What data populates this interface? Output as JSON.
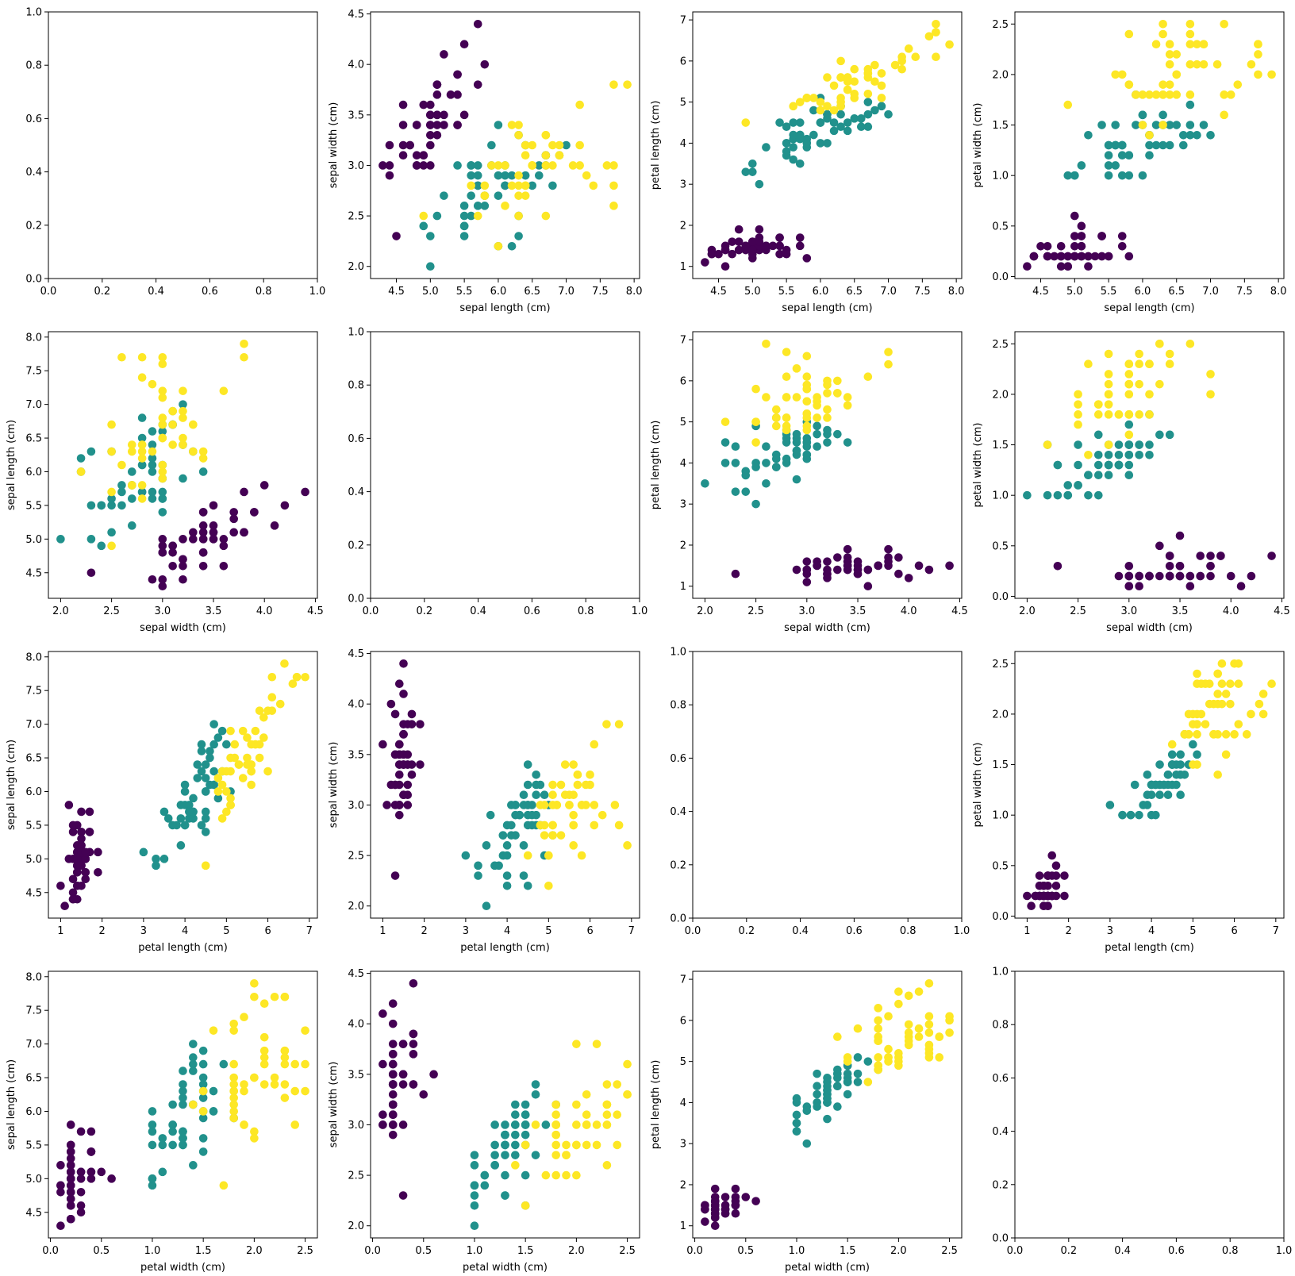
{
  "figure": {
    "species_colors": [
      "#440154",
      "#21918c",
      "#fde725"
    ],
    "features": [
      "sepal length (cm)",
      "sepal width (cm)",
      "petal length (cm)",
      "petal width (cm)"
    ]
  },
  "iris": {
    "sl": [
      5.1,
      4.9,
      4.7,
      4.6,
      5.0,
      5.4,
      4.6,
      5.0,
      4.4,
      4.9,
      5.4,
      4.8,
      4.8,
      4.3,
      5.8,
      5.7,
      5.4,
      5.1,
      5.7,
      5.1,
      5.4,
      5.1,
      4.6,
      5.1,
      4.8,
      5.0,
      5.0,
      5.2,
      5.2,
      4.7,
      4.8,
      5.4,
      5.2,
      5.5,
      4.9,
      5.0,
      5.5,
      4.9,
      4.4,
      5.1,
      5.0,
      4.5,
      4.4,
      5.0,
      5.1,
      4.8,
      5.1,
      4.6,
      5.3,
      5.0,
      7.0,
      6.4,
      6.9,
      5.5,
      6.5,
      5.7,
      6.3,
      4.9,
      6.6,
      5.2,
      5.0,
      5.9,
      6.0,
      6.1,
      5.6,
      6.7,
      5.6,
      5.8,
      6.2,
      5.6,
      5.9,
      6.1,
      6.3,
      6.1,
      6.4,
      6.6,
      6.8,
      6.7,
      6.0,
      5.7,
      5.5,
      5.5,
      5.8,
      6.0,
      5.4,
      6.0,
      6.7,
      6.3,
      5.6,
      5.5,
      5.5,
      6.1,
      5.8,
      5.0,
      5.6,
      5.7,
      5.7,
      6.2,
      5.1,
      5.7,
      6.3,
      5.8,
      7.1,
      6.3,
      6.5,
      7.6,
      4.9,
      7.3,
      6.7,
      7.2,
      6.5,
      6.4,
      6.8,
      5.7,
      5.8,
      6.4,
      6.5,
      7.7,
      7.7,
      6.0,
      6.9,
      5.6,
      7.7,
      6.3,
      6.7,
      7.2,
      6.2,
      6.1,
      6.4,
      7.2,
      7.4,
      7.9,
      6.4,
      6.3,
      6.1,
      7.7,
      6.3,
      6.4,
      6.0,
      6.9,
      6.7,
      6.9,
      5.8,
      6.8,
      6.7,
      6.7,
      6.3,
      6.5,
      6.2,
      5.9
    ],
    "sw": [
      3.5,
      3.0,
      3.2,
      3.1,
      3.6,
      3.9,
      3.4,
      3.4,
      2.9,
      3.1,
      3.7,
      3.4,
      3.0,
      3.0,
      4.0,
      4.4,
      3.9,
      3.5,
      3.8,
      3.8,
      3.4,
      3.7,
      3.6,
      3.3,
      3.4,
      3.0,
      3.4,
      3.5,
      3.4,
      3.2,
      3.1,
      3.4,
      4.1,
      4.2,
      3.1,
      3.2,
      3.5,
      3.6,
      3.0,
      3.4,
      3.5,
      2.3,
      3.2,
      3.5,
      3.8,
      3.0,
      3.8,
      3.2,
      3.7,
      3.3,
      3.2,
      3.2,
      3.1,
      2.3,
      2.8,
      2.8,
      3.3,
      2.4,
      2.9,
      2.7,
      2.0,
      3.0,
      2.2,
      2.9,
      2.9,
      3.1,
      3.0,
      2.7,
      2.2,
      2.5,
      3.2,
      2.8,
      2.5,
      2.8,
      2.9,
      3.0,
      2.8,
      3.0,
      2.9,
      2.6,
      2.4,
      2.4,
      2.7,
      2.7,
      3.0,
      3.4,
      3.1,
      2.3,
      3.0,
      2.5,
      2.6,
      3.0,
      2.6,
      2.3,
      2.7,
      3.0,
      2.9,
      2.9,
      2.5,
      2.8,
      3.3,
      2.7,
      3.0,
      2.9,
      3.0,
      3.0,
      2.5,
      2.9,
      2.5,
      3.6,
      3.2,
      2.7,
      3.0,
      2.5,
      2.8,
      3.2,
      3.0,
      3.8,
      2.6,
      2.2,
      3.2,
      2.8,
      2.8,
      2.7,
      3.3,
      3.2,
      2.8,
      3.0,
      2.8,
      3.0,
      2.8,
      3.8,
      2.8,
      2.8,
      2.6,
      3.0,
      3.4,
      3.1,
      3.0,
      3.1,
      3.1,
      3.1,
      2.7,
      3.2,
      3.3,
      3.0,
      2.5,
      3.0,
      3.4,
      3.0
    ],
    "pl": [
      1.4,
      1.4,
      1.3,
      1.5,
      1.4,
      1.7,
      1.4,
      1.5,
      1.4,
      1.5,
      1.5,
      1.6,
      1.4,
      1.1,
      1.2,
      1.5,
      1.3,
      1.4,
      1.7,
      1.5,
      1.7,
      1.5,
      1.0,
      1.7,
      1.9,
      1.6,
      1.6,
      1.5,
      1.4,
      1.6,
      1.6,
      1.5,
      1.5,
      1.4,
      1.5,
      1.2,
      1.3,
      1.4,
      1.3,
      1.5,
      1.3,
      1.3,
      1.3,
      1.6,
      1.9,
      1.4,
      1.6,
      1.4,
      1.5,
      1.4,
      4.7,
      4.5,
      4.9,
      4.0,
      4.6,
      4.5,
      4.7,
      3.3,
      4.6,
      3.9,
      3.5,
      4.2,
      4.0,
      4.7,
      3.6,
      4.4,
      4.5,
      4.1,
      4.5,
      3.9,
      4.8,
      4.0,
      4.9,
      4.7,
      4.3,
      4.4,
      4.8,
      5.0,
      4.5,
      3.5,
      3.8,
      3.7,
      3.9,
      5.1,
      4.5,
      4.5,
      4.7,
      4.4,
      4.1,
      4.0,
      4.4,
      4.6,
      4.0,
      3.3,
      4.2,
      4.2,
      4.2,
      4.3,
      3.0,
      4.1,
      6.0,
      5.1,
      5.9,
      5.6,
      5.8,
      6.6,
      4.5,
      6.3,
      5.8,
      6.1,
      5.1,
      5.3,
      5.5,
      5.0,
      5.1,
      5.3,
      5.5,
      6.7,
      6.9,
      5.0,
      5.7,
      4.9,
      6.7,
      4.9,
      5.7,
      6.0,
      4.8,
      4.9,
      5.6,
      5.8,
      6.1,
      6.4,
      5.6,
      5.1,
      5.6,
      6.1,
      5.6,
      5.5,
      4.8,
      5.4,
      5.6,
      5.1,
      5.1,
      5.9,
      5.7,
      5.2,
      5.0,
      5.2,
      5.4,
      5.1
    ],
    "pw": [
      0.2,
      0.2,
      0.2,
      0.2,
      0.2,
      0.4,
      0.3,
      0.2,
      0.2,
      0.1,
      0.2,
      0.2,
      0.1,
      0.1,
      0.2,
      0.4,
      0.4,
      0.3,
      0.3,
      0.3,
      0.2,
      0.4,
      0.2,
      0.5,
      0.2,
      0.2,
      0.4,
      0.2,
      0.2,
      0.2,
      0.2,
      0.4,
      0.1,
      0.2,
      0.2,
      0.2,
      0.2,
      0.1,
      0.2,
      0.2,
      0.3,
      0.3,
      0.2,
      0.6,
      0.4,
      0.3,
      0.2,
      0.2,
      0.2,
      0.2,
      1.4,
      1.5,
      1.5,
      1.3,
      1.5,
      1.3,
      1.6,
      1.0,
      1.3,
      1.4,
      1.0,
      1.5,
      1.0,
      1.4,
      1.3,
      1.4,
      1.5,
      1.0,
      1.5,
      1.1,
      1.8,
      1.3,
      1.5,
      1.2,
      1.3,
      1.4,
      1.4,
      1.7,
      1.5,
      1.0,
      1.1,
      1.0,
      1.2,
      1.6,
      1.5,
      1.6,
      1.5,
      1.3,
      1.3,
      1.3,
      1.2,
      1.4,
      1.2,
      1.0,
      1.3,
      1.2,
      1.3,
      1.3,
      1.1,
      1.3,
      2.5,
      1.9,
      2.1,
      1.8,
      2.2,
      2.1,
      1.7,
      1.8,
      1.8,
      2.5,
      2.0,
      1.9,
      2.1,
      2.0,
      2.4,
      2.3,
      1.8,
      2.2,
      2.3,
      1.5,
      2.3,
      2.0,
      2.0,
      1.8,
      2.1,
      1.8,
      1.8,
      1.8,
      2.1,
      1.6,
      1.9,
      2.0,
      2.2,
      1.5,
      1.4,
      2.3,
      2.4,
      1.8,
      1.8,
      2.1,
      2.4,
      2.3,
      1.9,
      2.3,
      2.5,
      2.3,
      1.9,
      2.0,
      2.3,
      1.8
    ],
    "class_counts": [
      50,
      50,
      50
    ]
  },
  "chart_data": [
    {
      "type": "scatter",
      "row": 0,
      "col": 0,
      "empty": true,
      "xlabel": "",
      "ylabel": "",
      "xlim": [
        0,
        1
      ],
      "ylim": [
        0,
        1
      ],
      "xticks": [
        0.0,
        0.2,
        0.4,
        0.6,
        0.8,
        1.0
      ],
      "yticks": [
        0.0,
        0.2,
        0.4,
        0.6,
        0.8,
        1.0
      ],
      "tick_decimals": 1
    },
    {
      "type": "scatter",
      "row": 0,
      "col": 1,
      "x": "sl",
      "y": "sw",
      "xlabel": "sepal length (cm)",
      "ylabel": "sepal width (cm)",
      "xlim": [
        4.12,
        8.08
      ],
      "ylim": [
        1.88,
        4.52
      ],
      "xticks": [
        4.5,
        5.0,
        5.5,
        6.0,
        6.5,
        7.0,
        7.5,
        8.0
      ],
      "yticks": [
        2.0,
        2.5,
        3.0,
        3.5,
        4.0,
        4.5
      ],
      "tick_decimals": 1
    },
    {
      "type": "scatter",
      "row": 0,
      "col": 2,
      "x": "sl",
      "y": "pl",
      "xlabel": "sepal length (cm)",
      "ylabel": "petal length (cm)",
      "xlim": [
        4.12,
        8.08
      ],
      "ylim": [
        0.705,
        7.195
      ],
      "xticks": [
        4.5,
        5.0,
        5.5,
        6.0,
        6.5,
        7.0,
        7.5,
        8.0
      ],
      "yticks": [
        1,
        2,
        3,
        4,
        5,
        6,
        7
      ],
      "tick_decimals": 0,
      "xtick_decimals": 1
    },
    {
      "type": "scatter",
      "row": 0,
      "col": 3,
      "x": "sl",
      "y": "pw",
      "xlabel": "sepal length (cm)",
      "ylabel": "petal width (cm)",
      "xlim": [
        4.12,
        8.08
      ],
      "ylim": [
        -0.02,
        2.62
      ],
      "xticks": [
        4.5,
        5.0,
        5.5,
        6.0,
        6.5,
        7.0,
        7.5,
        8.0
      ],
      "yticks": [
        0.0,
        0.5,
        1.0,
        1.5,
        2.0,
        2.5
      ],
      "tick_decimals": 1
    },
    {
      "type": "scatter",
      "row": 1,
      "col": 0,
      "x": "sw",
      "y": "sl",
      "xlabel": "sepal width (cm)",
      "ylabel": "sepal length (cm)",
      "xlim": [
        1.88,
        4.52
      ],
      "ylim": [
        4.12,
        8.08
      ],
      "xticks": [
        2.0,
        2.5,
        3.0,
        3.5,
        4.0,
        4.5
      ],
      "yticks": [
        4.5,
        5.0,
        5.5,
        6.0,
        6.5,
        7.0,
        7.5,
        8.0
      ],
      "tick_decimals": 1
    },
    {
      "type": "scatter",
      "row": 1,
      "col": 1,
      "empty": true,
      "xlabel": "",
      "ylabel": "",
      "xlim": [
        0,
        1
      ],
      "ylim": [
        0,
        1
      ],
      "xticks": [
        0.0,
        0.2,
        0.4,
        0.6,
        0.8,
        1.0
      ],
      "yticks": [
        0.0,
        0.2,
        0.4,
        0.6,
        0.8,
        1.0
      ],
      "tick_decimals": 1
    },
    {
      "type": "scatter",
      "row": 1,
      "col": 2,
      "x": "sw",
      "y": "pl",
      "xlabel": "sepal width (cm)",
      "ylabel": "petal length (cm)",
      "xlim": [
        1.88,
        4.52
      ],
      "ylim": [
        0.705,
        7.195
      ],
      "xticks": [
        2.0,
        2.5,
        3.0,
        3.5,
        4.0,
        4.5
      ],
      "yticks": [
        1,
        2,
        3,
        4,
        5,
        6,
        7
      ],
      "tick_decimals": 0,
      "xtick_decimals": 1
    },
    {
      "type": "scatter",
      "row": 1,
      "col": 3,
      "x": "sw",
      "y": "pw",
      "xlabel": "sepal width (cm)",
      "ylabel": "petal width (cm)",
      "xlim": [
        1.88,
        4.52
      ],
      "ylim": [
        -0.02,
        2.62
      ],
      "xticks": [
        2.0,
        2.5,
        3.0,
        3.5,
        4.0,
        4.5
      ],
      "yticks": [
        0.0,
        0.5,
        1.0,
        1.5,
        2.0,
        2.5
      ],
      "tick_decimals": 1
    },
    {
      "type": "scatter",
      "row": 2,
      "col": 0,
      "x": "pl",
      "y": "sl",
      "xlabel": "petal length (cm)",
      "ylabel": "sepal length (cm)",
      "xlim": [
        0.705,
        7.195
      ],
      "ylim": [
        4.12,
        8.08
      ],
      "xticks": [
        1,
        2,
        3,
        4,
        5,
        6,
        7
      ],
      "yticks": [
        4.5,
        5.0,
        5.5,
        6.0,
        6.5,
        7.0,
        7.5,
        8.0
      ],
      "tick_decimals": 1,
      "xtick_decimals": 0
    },
    {
      "type": "scatter",
      "row": 2,
      "col": 1,
      "x": "pl",
      "y": "sw",
      "xlabel": "petal length (cm)",
      "ylabel": "sepal width (cm)",
      "xlim": [
        0.705,
        7.195
      ],
      "ylim": [
        1.88,
        4.52
      ],
      "xticks": [
        1,
        2,
        3,
        4,
        5,
        6,
        7
      ],
      "yticks": [
        2.0,
        2.5,
        3.0,
        3.5,
        4.0,
        4.5
      ],
      "tick_decimals": 1,
      "xtick_decimals": 0
    },
    {
      "type": "scatter",
      "row": 2,
      "col": 2,
      "empty": true,
      "xlabel": "",
      "ylabel": "",
      "xlim": [
        0,
        1
      ],
      "ylim": [
        0,
        1
      ],
      "xticks": [
        0.0,
        0.2,
        0.4,
        0.6,
        0.8,
        1.0
      ],
      "yticks": [
        0.0,
        0.2,
        0.4,
        0.6,
        0.8,
        1.0
      ],
      "tick_decimals": 1
    },
    {
      "type": "scatter",
      "row": 2,
      "col": 3,
      "x": "pl",
      "y": "pw",
      "xlabel": "petal length (cm)",
      "ylabel": "petal width (cm)",
      "xlim": [
        0.705,
        7.195
      ],
      "ylim": [
        -0.02,
        2.62
      ],
      "xticks": [
        1,
        2,
        3,
        4,
        5,
        6,
        7
      ],
      "yticks": [
        0.0,
        0.5,
        1.0,
        1.5,
        2.0,
        2.5
      ],
      "tick_decimals": 1,
      "xtick_decimals": 0
    },
    {
      "type": "scatter",
      "row": 3,
      "col": 0,
      "x": "pw",
      "y": "sl",
      "xlabel": "petal width (cm)",
      "ylabel": "sepal length (cm)",
      "xlim": [
        -0.02,
        2.62
      ],
      "ylim": [
        4.12,
        8.08
      ],
      "xticks": [
        0.0,
        0.5,
        1.0,
        1.5,
        2.0,
        2.5
      ],
      "yticks": [
        4.5,
        5.0,
        5.5,
        6.0,
        6.5,
        7.0,
        7.5,
        8.0
      ],
      "tick_decimals": 1
    },
    {
      "type": "scatter",
      "row": 3,
      "col": 1,
      "x": "pw",
      "y": "sw",
      "xlabel": "petal width (cm)",
      "ylabel": "sepal width (cm)",
      "xlim": [
        -0.02,
        2.62
      ],
      "ylim": [
        1.88,
        4.52
      ],
      "xticks": [
        0.0,
        0.5,
        1.0,
        1.5,
        2.0,
        2.5
      ],
      "yticks": [
        2.0,
        2.5,
        3.0,
        3.5,
        4.0,
        4.5
      ],
      "tick_decimals": 1
    },
    {
      "type": "scatter",
      "row": 3,
      "col": 2,
      "x": "pw",
      "y": "pl",
      "xlabel": "petal width (cm)",
      "ylabel": "petal length (cm)",
      "xlim": [
        -0.02,
        2.62
      ],
      "ylim": [
        0.705,
        7.195
      ],
      "xticks": [
        0.0,
        0.5,
        1.0,
        1.5,
        2.0,
        2.5
      ],
      "yticks": [
        1,
        2,
        3,
        4,
        5,
        6,
        7
      ],
      "tick_decimals": 0,
      "xtick_decimals": 1
    },
    {
      "type": "scatter",
      "row": 3,
      "col": 3,
      "empty": true,
      "xlabel": "",
      "ylabel": "",
      "xlim": [
        0,
        1
      ],
      "ylim": [
        0,
        1
      ],
      "xticks": [
        0.0,
        0.2,
        0.4,
        0.6,
        0.8,
        1.0
      ],
      "yticks": [
        0.0,
        0.2,
        0.4,
        0.6,
        0.8,
        1.0
      ],
      "tick_decimals": 1
    }
  ]
}
